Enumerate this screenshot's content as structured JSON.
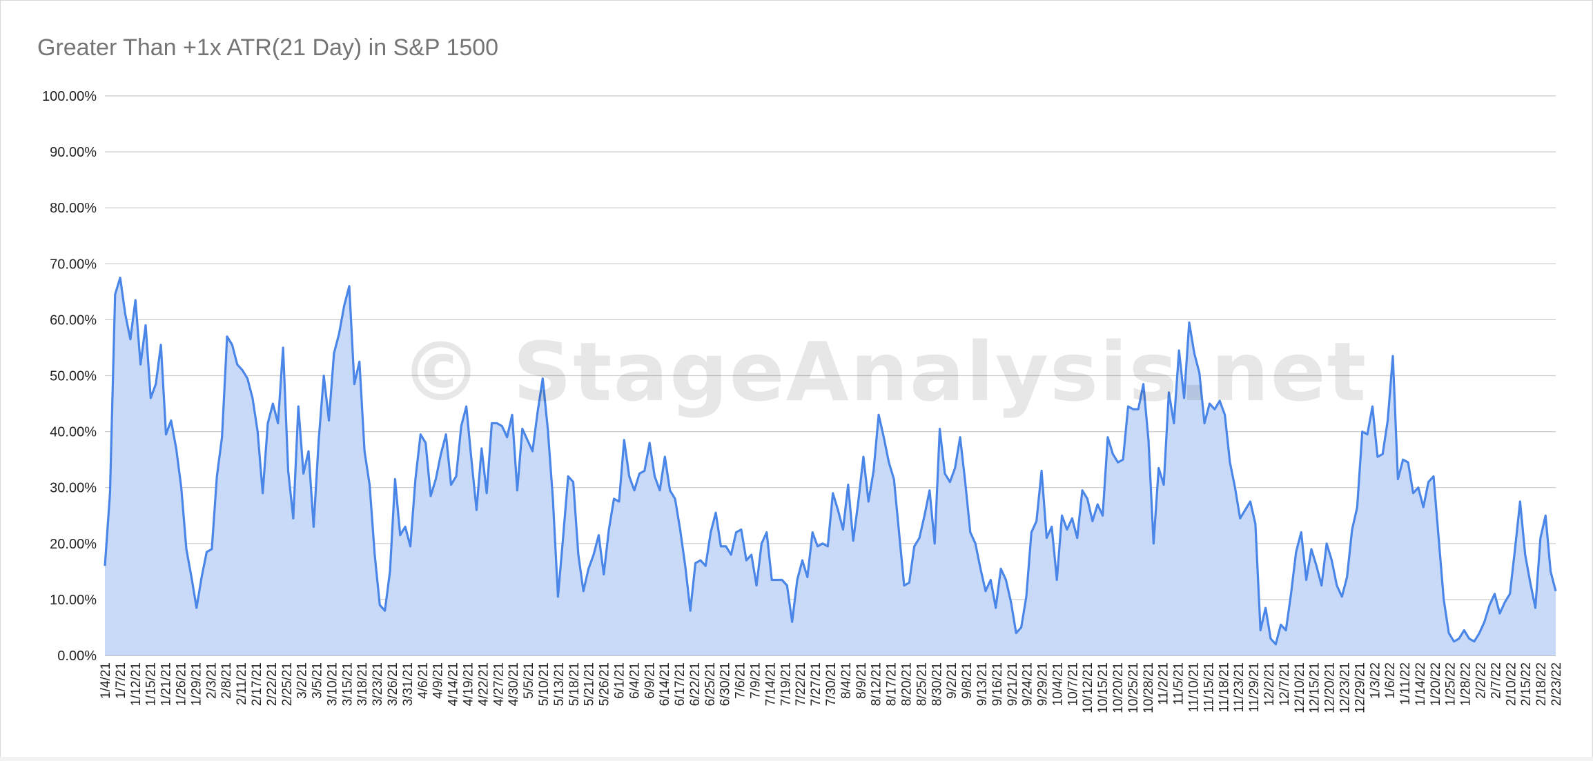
{
  "chart_data": {
    "type": "area",
    "title": "Greater Than +1x ATR(21 Day) in S&P 1500",
    "xlabel": "",
    "ylabel": "",
    "ylim": [
      0,
      100
    ],
    "y_ticks": [
      "0.00%",
      "10.00%",
      "20.00%",
      "30.00%",
      "40.00%",
      "50.00%",
      "60.00%",
      "70.00%",
      "80.00%",
      "90.00%",
      "100.00%"
    ],
    "x_tick_labels": [
      "1/4/21",
      "1/7/21",
      "1/12/21",
      "1/15/21",
      "1/21/21",
      "1/26/21",
      "1/29/21",
      "2/3/21",
      "2/8/21",
      "2/11/21",
      "2/17/21",
      "2/22/21",
      "2/25/21",
      "3/2/21",
      "3/5/21",
      "3/10/21",
      "3/15/21",
      "3/18/21",
      "3/23/21",
      "3/26/21",
      "3/31/21",
      "4/6/21",
      "4/9/21",
      "4/14/21",
      "4/19/21",
      "4/22/21",
      "4/27/21",
      "4/30/21",
      "5/5/21",
      "5/10/21",
      "5/13/21",
      "5/18/21",
      "5/21/21",
      "5/26/21",
      "6/1/21",
      "6/4/21",
      "6/9/21",
      "6/14/21",
      "6/17/21",
      "6/22/21",
      "6/25/21",
      "6/30/21",
      "7/6/21",
      "7/9/21",
      "7/14/21",
      "7/19/21",
      "7/22/21",
      "7/27/21",
      "7/30/21",
      "8/4/21",
      "8/9/21",
      "8/12/21",
      "8/17/21",
      "8/20/21",
      "8/25/21",
      "8/30/21",
      "9/2/21",
      "9/8/21",
      "9/13/21",
      "9/16/21",
      "9/21/21",
      "9/24/21",
      "9/29/21",
      "10/4/21",
      "10/7/21",
      "10/12/21",
      "10/15/21",
      "10/20/21",
      "10/25/21",
      "10/28/21",
      "11/2/21",
      "11/5/21",
      "11/10/21",
      "11/15/21",
      "11/18/21",
      "11/23/21",
      "11/29/21",
      "12/2/21",
      "12/7/21",
      "12/10/21",
      "12/15/21",
      "12/20/21",
      "12/23/21",
      "12/29/21",
      "1/3/22",
      "1/6/22",
      "1/11/22",
      "1/14/22",
      "1/20/22",
      "1/25/22",
      "1/28/22",
      "2/2/22",
      "2/7/22",
      "2/10/22",
      "2/15/22",
      "2/18/22",
      "2/23/22"
    ],
    "series": [
      {
        "values": [
          16,
          29,
          64.5,
          67.5,
          61,
          56.5,
          63.5,
          52,
          59,
          46,
          48.5,
          55.5,
          39.5,
          42,
          37,
          30,
          19,
          14,
          8.5,
          14,
          18.5,
          19,
          32,
          39,
          57,
          55.5,
          52,
          51,
          49.5,
          46,
          40,
          29,
          41.5,
          45,
          41.5,
          55,
          33,
          24.5,
          44.5,
          32.5,
          36.5,
          23,
          38.5,
          50,
          42,
          54,
          57.5,
          62.5,
          66,
          48.5,
          52.5,
          36.5,
          30.5,
          18,
          9,
          8,
          15,
          31.5,
          21.5,
          23,
          19.5,
          31.5,
          39.5,
          38,
          28.5,
          31.5,
          36,
          39.5,
          30.5,
          32,
          41,
          44.5,
          35,
          26,
          37,
          29,
          41.5,
          41.5,
          41,
          39,
          43,
          29.5,
          40.5,
          38.5,
          36.5,
          43.5,
          49.5,
          40.5,
          28,
          10.5,
          21,
          32,
          31,
          18,
          11.5,
          15.5,
          18,
          21.5,
          14.5,
          22.5,
          28,
          27.5,
          38.5,
          32,
          29.5,
          32.5,
          33,
          38,
          32,
          29.5,
          35.5,
          29.5,
          28,
          22.5,
          16,
          8,
          16.5,
          17,
          16,
          22,
          25.5,
          19.5,
          19.5,
          18,
          22,
          22.5,
          17,
          18,
          12.5,
          20,
          22,
          13.5,
          13.5,
          13.5,
          12.5,
          6,
          13.5,
          17,
          14,
          22,
          19.5,
          20,
          19.5,
          29,
          26,
          22.5,
          30.5,
          20.5,
          27.5,
          35.5,
          27.5,
          33,
          43,
          39,
          34.5,
          31.5,
          22,
          12.5,
          13,
          19.5,
          21,
          25,
          29.5,
          20,
          40.5,
          32.5,
          31,
          33.5,
          39,
          31,
          22,
          20,
          15.5,
          11.5,
          13.5,
          8.5,
          15.5,
          13.5,
          9.5,
          4,
          5,
          10.5,
          22,
          24,
          33,
          21,
          23,
          13.5,
          25,
          22.5,
          24.5,
          21,
          29.5,
          28,
          24,
          27,
          25,
          39,
          36,
          34.5,
          35,
          44.5,
          44,
          44,
          48.5,
          38.5,
          20,
          33.5,
          30.5,
          47,
          41.5,
          54.5,
          46,
          59.5,
          54,
          50.5,
          41.5,
          45,
          44,
          45.5,
          43,
          34.5,
          30,
          24.5,
          26,
          27.5,
          23.5,
          4.5,
          8.5,
          3,
          2,
          5.5,
          4.5,
          11,
          18.5,
          22,
          13.5,
          19,
          16,
          12.5,
          20,
          17,
          12.5,
          10.5,
          14,
          22.5,
          26.5,
          40,
          39.5,
          44.5,
          35.5,
          36,
          42,
          53.5,
          31.5,
          35,
          34.5,
          29,
          30,
          26.5,
          31,
          32,
          21,
          10,
          4,
          2.5,
          3,
          4.5,
          3,
          2.5,
          4,
          6,
          9,
          11,
          7.5,
          9.5,
          11,
          19,
          27.5,
          18,
          13,
          8.5,
          21,
          25,
          15,
          11.5
        ]
      }
    ],
    "grid": true,
    "legend": "none",
    "line_color": "#4a86e8",
    "fill_color": "#c9daf8"
  },
  "watermark": "© StageAnalysis.net"
}
